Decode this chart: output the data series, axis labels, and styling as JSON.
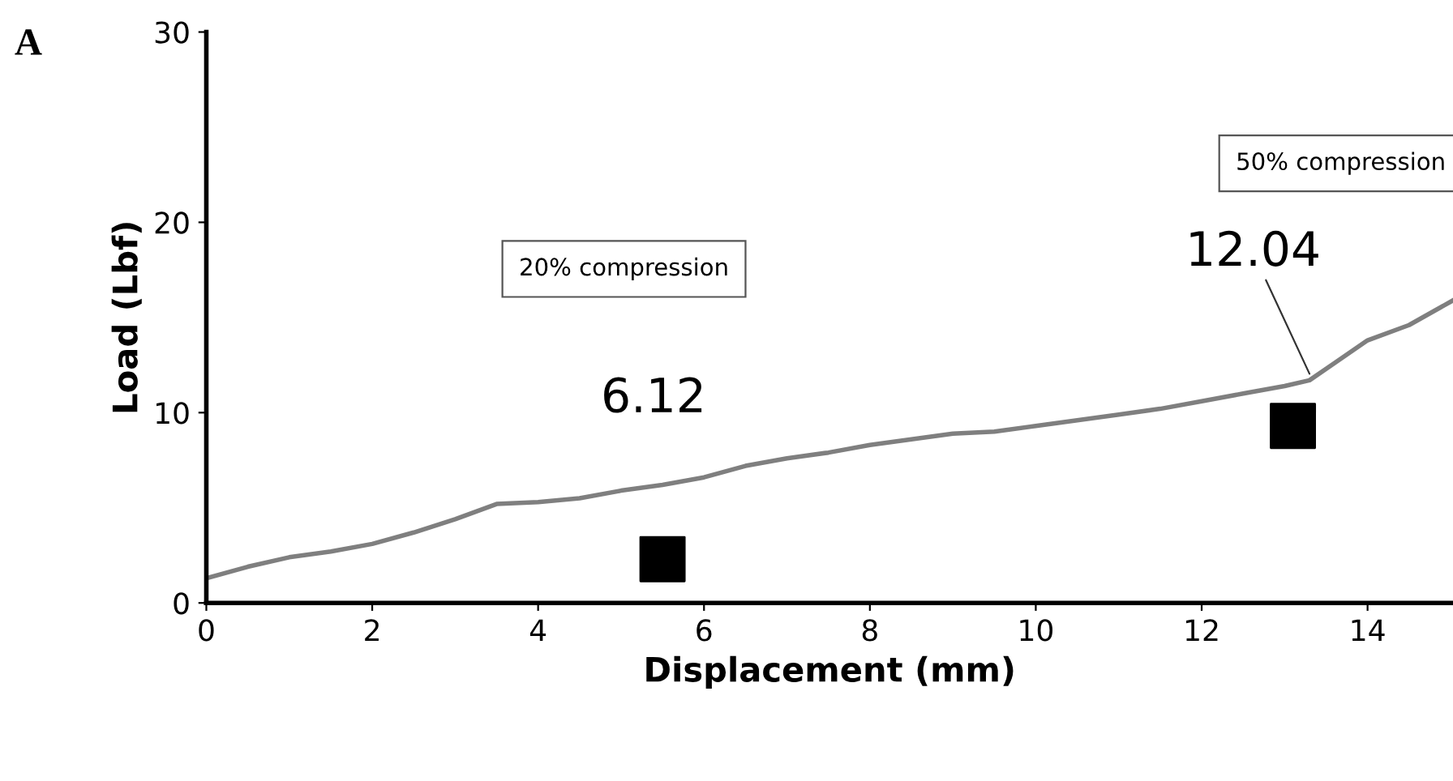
{
  "chart_data": {
    "type": "line",
    "xlabel": "Displacement (mm)",
    "ylabel": "Load (Lbf)",
    "xlim": [
      0,
      15.03
    ],
    "ylim": [
      0,
      30
    ],
    "xticks": [
      0,
      2,
      4,
      6,
      8,
      10,
      12,
      14
    ],
    "yticks": [
      0,
      10,
      20,
      30
    ],
    "grid": false,
    "legend": false,
    "series": [
      {
        "color": "#7f7f7f",
        "marker": "none",
        "x": [
          0,
          0.5,
          1,
          1.5,
          2,
          2.5,
          3,
          3.5,
          4,
          4.5,
          5,
          5.5,
          6,
          6.5,
          7,
          7.5,
          8,
          8.5,
          9,
          9.5,
          10,
          10.5,
          11,
          11.5,
          12,
          12.5,
          13,
          13.3,
          13.6,
          14,
          14.5,
          15.03
        ],
        "values": [
          1.3,
          1.9,
          2.4,
          2.7,
          3.1,
          3.7,
          4.4,
          5.2,
          5.3,
          5.5,
          5.9,
          6.2,
          6.6,
          7.2,
          7.6,
          7.9,
          8.3,
          8.6,
          8.9,
          9.0,
          9.3,
          9.6,
          9.9,
          10.2,
          10.6,
          11.0,
          11.4,
          11.7,
          12.6,
          13.8,
          14.6,
          15.9
        ]
      },
      {
        "type": "scatter",
        "color": "#000000",
        "marker": "square",
        "x": [
          5.5,
          13.1
        ],
        "values": [
          2.3,
          9.3
        ]
      }
    ],
    "annotations": [
      "A",
      "20% compression",
      "50% compression",
      {
        "text": "6.12",
        "x": 5.5,
        "y": 6.12
      },
      {
        "text": "12.04",
        "x": 13.3,
        "y": 12.04
      }
    ]
  }
}
